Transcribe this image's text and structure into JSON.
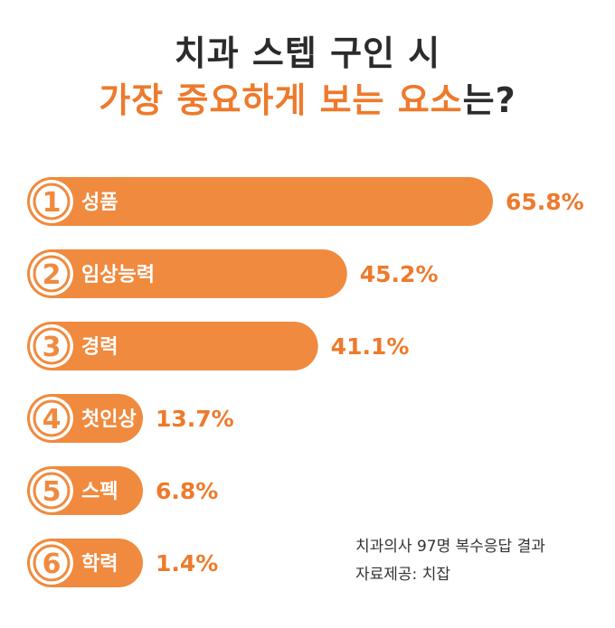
{
  "title": {
    "line1": "치과 스텝 구인 시",
    "line2_part1": "가장 중요하게 보는 요소",
    "line2_part2": "는?"
  },
  "chart_data": {
    "type": "bar",
    "orientation": "horizontal",
    "categories": [
      "성품",
      "임상능력",
      "경력",
      "첫인상",
      "스펙",
      "학력"
    ],
    "ranks": [
      "1",
      "2",
      "3",
      "4",
      "5",
      "6"
    ],
    "values": [
      65.8,
      45.2,
      41.1,
      13.7,
      6.8,
      1.4
    ],
    "value_labels": [
      "65.8%",
      "45.2%",
      "41.1%",
      "13.7%",
      "6.8%",
      "1.4%"
    ],
    "unit": "%",
    "bar_color": "#f08a3e"
  },
  "notes": {
    "line1": "치과의사 97명 복수응답 결과",
    "line2": "자료제공: 치잡"
  },
  "colors": {
    "accent": "#ee7a2c",
    "text_dark": "#2b2b2b"
  }
}
